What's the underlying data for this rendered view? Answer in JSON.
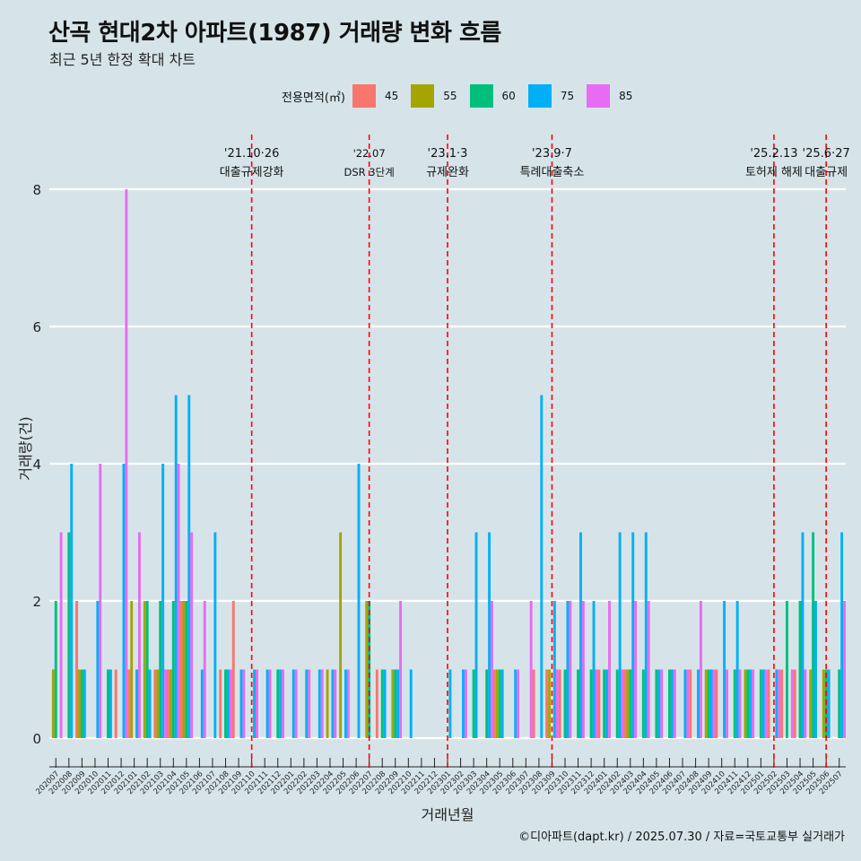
{
  "title": "산곡 현대2차 아파트(1987) 거래량 변화 흐름",
  "subtitle": "최근 5년 한정 확대 차트",
  "caption": "©디아파트(dapt.kr) / 2025.07.30 / 자료=국토교통부 실거래가",
  "legend": {
    "title": "전용면적(㎡)",
    "items": [
      {
        "label": "45",
        "color": "#f8766d"
      },
      {
        "label": "55",
        "color": "#a3a500"
      },
      {
        "label": "60",
        "color": "#00bf7d"
      },
      {
        "label": "75",
        "color": "#00b0f6"
      },
      {
        "label": "85",
        "color": "#e76bf3"
      }
    ]
  },
  "chart_data": {
    "type": "bar",
    "title": "산곡 현대2차 아파트(1987) 거래량 변화 흐름",
    "xlabel": "거래년월",
    "ylabel": "거래량(건)",
    "ylim": [
      0,
      8
    ],
    "yticks": [
      0,
      2,
      4,
      6,
      8
    ],
    "categories": [
      "202007",
      "202008",
      "202009",
      "202010",
      "202011",
      "202012",
      "202101",
      "202102",
      "202103",
      "202104",
      "202105",
      "202106",
      "202107",
      "202108",
      "202109",
      "202110",
      "202111",
      "202112",
      "202201",
      "202202",
      "202203",
      "202204",
      "202205",
      "202206",
      "202207",
      "202208",
      "202209",
      "202210",
      "202211",
      "202212",
      "202301",
      "202302",
      "202303",
      "202304",
      "202305",
      "202306",
      "202307",
      "202308",
      "202309",
      "202310",
      "202311",
      "202312",
      "202401",
      "202402",
      "202403",
      "202404",
      "202405",
      "202406",
      "202407",
      "202408",
      "202409",
      "202410",
      "202411",
      "202412",
      "202501",
      "202502",
      "202503",
      "202504",
      "202505",
      "202506",
      "202507"
    ],
    "series": [
      {
        "name": "45",
        "values": [
          0,
          0,
          2,
          0,
          0,
          1,
          1,
          0,
          1,
          1,
          2,
          0,
          0,
          1,
          2,
          0,
          0,
          0,
          0,
          0,
          0,
          0,
          0,
          0,
          0,
          1,
          0,
          0,
          0,
          0,
          0,
          0,
          0,
          0,
          1,
          0,
          0,
          1,
          1,
          1,
          0,
          0,
          1,
          0,
          1,
          0,
          0,
          0,
          0,
          1,
          0,
          1,
          0,
          0,
          0,
          1,
          1,
          1,
          0,
          0,
          0
        ]
      },
      {
        "name": "55",
        "values": [
          1,
          0,
          1,
          0,
          0,
          0,
          2,
          2,
          1,
          1,
          2,
          0,
          0,
          0,
          0,
          0,
          0,
          0,
          0,
          0,
          0,
          1,
          3,
          0,
          2,
          0,
          1,
          0,
          0,
          0,
          0,
          0,
          0,
          0,
          1,
          0,
          0,
          0,
          1,
          0,
          0,
          0,
          0,
          0,
          1,
          0,
          0,
          0,
          0,
          0,
          1,
          0,
          0,
          1,
          0,
          0,
          0,
          0,
          1,
          1,
          0
        ]
      },
      {
        "name": "60",
        "values": [
          2,
          3,
          1,
          0,
          1,
          0,
          0,
          2,
          2,
          2,
          2,
          0,
          0,
          1,
          0,
          0,
          0,
          1,
          0,
          0,
          0,
          0,
          0,
          0,
          2,
          1,
          1,
          0,
          0,
          0,
          0,
          0,
          1,
          1,
          1,
          0,
          0,
          0,
          0,
          1,
          1,
          1,
          1,
          1,
          1,
          1,
          1,
          1,
          0,
          0,
          1,
          0,
          1,
          1,
          1,
          0,
          2,
          2,
          3,
          1,
          1
        ]
      },
      {
        "name": "75",
        "values": [
          0,
          4,
          1,
          2,
          1,
          4,
          1,
          1,
          4,
          5,
          5,
          1,
          3,
          1,
          1,
          1,
          1,
          1,
          1,
          1,
          1,
          1,
          1,
          4,
          0,
          1,
          1,
          1,
          0,
          0,
          1,
          1,
          3,
          3,
          1,
          1,
          0,
          5,
          2,
          2,
          3,
          2,
          1,
          3,
          3,
          3,
          1,
          1,
          1,
          1,
          1,
          2,
          2,
          1,
          1,
          1,
          0,
          3,
          2,
          1,
          3
        ]
      },
      {
        "name": "85",
        "values": [
          3,
          0,
          0,
          4,
          0,
          8,
          3,
          0,
          1,
          4,
          3,
          2,
          0,
          1,
          1,
          1,
          1,
          1,
          1,
          1,
          1,
          1,
          1,
          0,
          0,
          0,
          2,
          0,
          0,
          0,
          0,
          1,
          0,
          2,
          0,
          1,
          2,
          0,
          1,
          2,
          2,
          1,
          2,
          1,
          2,
          2,
          1,
          1,
          1,
          2,
          1,
          1,
          1,
          1,
          1,
          1,
          1,
          1,
          0,
          0,
          2
        ]
      }
    ],
    "events": [
      {
        "category": "202110",
        "date": "'21.10·26",
        "label": "대출규제강화"
      },
      {
        "category": "202207",
        "date": "'22.07",
        "label": "DSR 3단계"
      },
      {
        "category": "202301",
        "date": "'23.1·3",
        "label": "규제완화"
      },
      {
        "category": "202309",
        "date": "'23.9·7",
        "label": "특례대출축소"
      },
      {
        "category": "202502",
        "date": "'25.2.13",
        "label": "토허제 해제"
      },
      {
        "category": "202506",
        "date": "'25.6·27",
        "label": "대출규제"
      }
    ],
    "grid": true,
    "legend_position": "top"
  }
}
